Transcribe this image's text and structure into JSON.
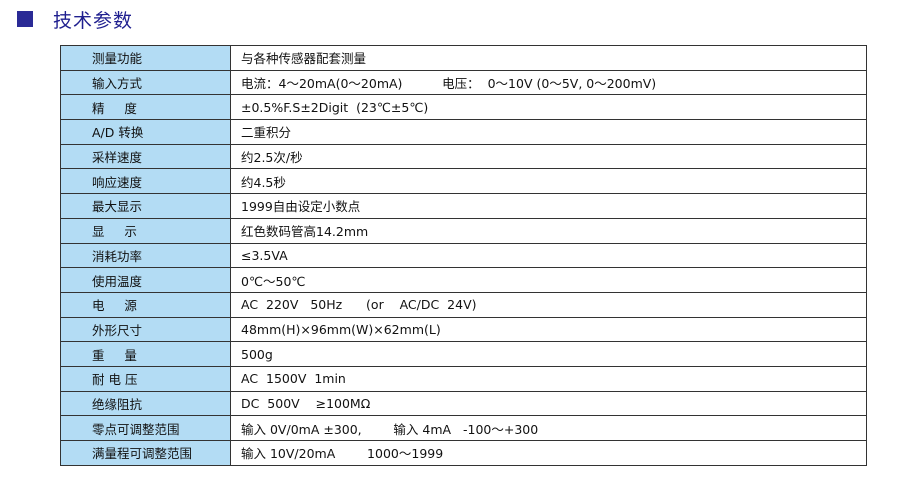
{
  "header": {
    "title": "技术参数",
    "colors": {
      "title": "#1f1f8f",
      "label_bg": "#b3dcf4"
    }
  },
  "rows": [
    {
      "label": "测量功能",
      "value": "与各种传感器配套测量"
    },
    {
      "label": "输入方式",
      "value": "电流：4～20mA(0～20mA)          电压：  0～10V (0～5V, 0～200mV)"
    },
    {
      "label": "精     度",
      "value": "±0.5%F.S±2Digit  (23℃±5℃)"
    },
    {
      "label": "A/D 转换",
      "value": "二重积分"
    },
    {
      "label": "采样速度",
      "value": "约2.5次/秒"
    },
    {
      "label": "响应速度",
      "value": "约4.5秒"
    },
    {
      "label": "最大显示",
      "value": "1999自由设定小数点"
    },
    {
      "label": "显     示",
      "value": "红色数码管高14.2mm"
    },
    {
      "label": "消耗功率",
      "value": "≤3.5VA"
    },
    {
      "label": "使用温度",
      "value": "0℃～50℃"
    },
    {
      "label": "电     源",
      "value": "AC  220V   50Hz      (or    AC/DC  24V)"
    },
    {
      "label": "外形尺寸",
      "value": "48mm(H)×96mm(W)×62mm(L)"
    },
    {
      "label": "重     量",
      "value": "500g"
    },
    {
      "label": "耐 电 压",
      "value": "AC  1500V  1min"
    },
    {
      "label": "绝缘阻抗",
      "value": "DC  500V    ≥100MΩ"
    },
    {
      "label": "零点可调整范围",
      "value": "输入 0V/0mA ±300,        输入 4mA   -100～+300"
    },
    {
      "label": "满量程可调整范围",
      "value": "输入 10V/20mA        1000～1999"
    }
  ]
}
